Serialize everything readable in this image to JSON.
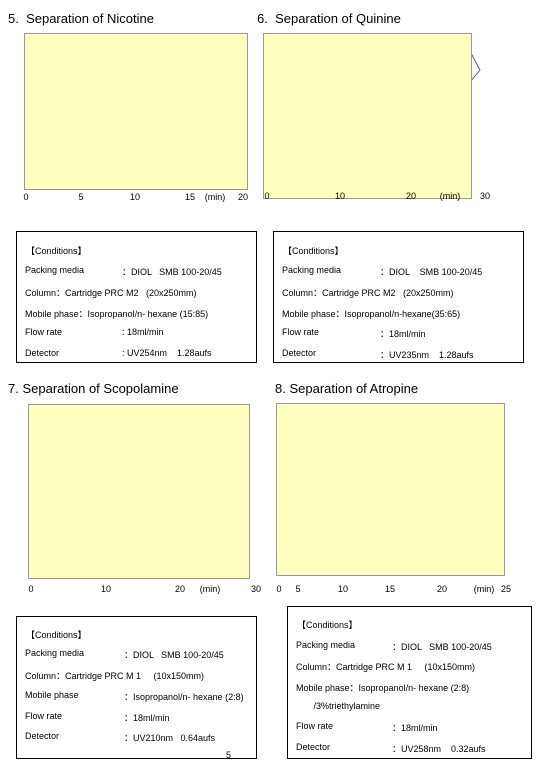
{
  "page_number": "5",
  "sections": [
    {
      "title": "5.  Separation of Nicotine",
      "xticks": [
        "0",
        "5",
        "10",
        "15",
        "20"
      ],
      "xunit": "(min)",
      "conditions": {
        "heading": "【Conditions】",
        "rows": [
          [
            "Packing media",
            "：DIOL   SMB 100-20/45"
          ],
          [
            "Column：Cartridge PRC M2   (20x250mm)"
          ],
          [
            "Mobile phase：Isopropanol/n- hexane (15:85)"
          ],
          [
            "Flow rate",
            ": 18ml/min"
          ],
          [
            "Detector",
            ": UV254nm    1.28aufs"
          ]
        ]
      }
    },
    {
      "title": "6.  Separation of Quinine",
      "xticks": [
        "0",
        "10",
        "20",
        "30"
      ],
      "xunit": "(min)",
      "conditions": {
        "heading": "【Conditions】",
        "rows": [
          [
            "Packing media",
            "：DIOL    SMB 100-20/45"
          ],
          [
            "Column：Cartridge PRC M2   (20x250mm)"
          ],
          [
            "Mobile phase：Isopropanol/n-hexane(35:65)"
          ],
          [
            "Flow rate",
            "：18ml/min"
          ],
          [
            "Detector",
            "：UV235nm    1.28aufs"
          ]
        ]
      }
    },
    {
      "title": "7. Separation of Scopolamine",
      "xticks": [
        "0",
        "10",
        "20",
        "30"
      ],
      "xunit": "(min)",
      "conditions": {
        "heading": "【Conditions】",
        "rows": [
          [
            "Packing media",
            "：DIOL   SMB 100-20/45"
          ],
          [
            "Column：Cartridge PRC M 1     (10x150mm)"
          ],
          [
            "Mobile phase",
            "：Isopropanol/n- hexane (2:8)"
          ],
          [
            "Flow rate",
            "：18ml/min"
          ],
          [
            "Detector",
            "：UV210nm   0.64aufs"
          ]
        ]
      }
    },
    {
      "title": "8. Separation of Atropine",
      "xticks": [
        "0",
        "5",
        "10",
        "15",
        "20",
        "25"
      ],
      "xunit": "(min)",
      "conditions": {
        "heading": "【Conditions】",
        "rows": [
          [
            "Packing media",
            "：DIOL   SMB 100-20/45"
          ],
          [
            "Column：Cartridge PRC M 1     (10x150mm)"
          ],
          [
            "Mobile phase：Isopropanol/n- hexane (2:8)"
          ],
          [
            "       /3%triethylamine"
          ],
          [
            "Flow rate",
            "：18ml/min"
          ],
          [
            "Detector",
            "：UV258nm    0.32aufs"
          ]
        ]
      }
    }
  ]
}
